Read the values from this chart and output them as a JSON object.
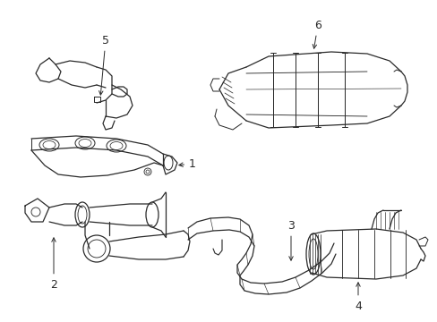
{
  "background_color": "#ffffff",
  "line_color": "#2a2a2a",
  "line_width": 0.9,
  "figsize": [
    4.89,
    3.6
  ],
  "dpi": 100,
  "xlim": [
    0,
    489
  ],
  "ylim": [
    0,
    360
  ]
}
